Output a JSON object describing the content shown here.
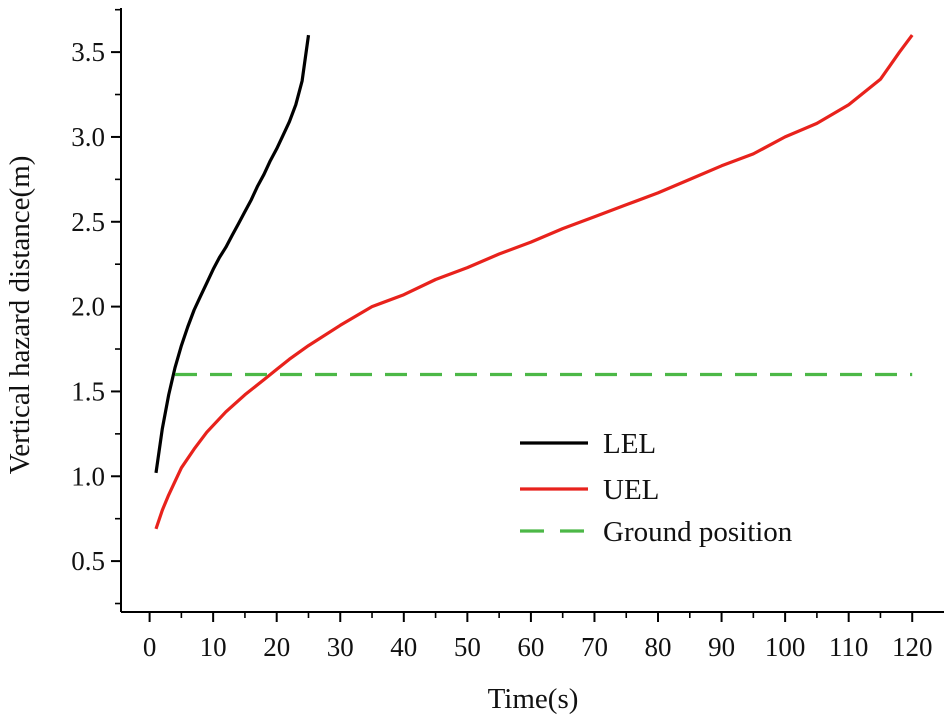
{
  "chart_data": {
    "type": "line",
    "title": "",
    "xlabel": "Time(s)",
    "ylabel": "Vertical hazard distance(m)",
    "xlim": [
      -4.5,
      125
    ],
    "ylim": [
      0.2,
      3.76
    ],
    "xticks": [
      0,
      10,
      20,
      30,
      40,
      50,
      60,
      70,
      80,
      90,
      100,
      110,
      120
    ],
    "yticks": [
      0.5,
      1.0,
      1.5,
      2.0,
      2.5,
      3.0,
      3.5
    ],
    "ytick_labels": [
      "0.5",
      "1.0",
      "1.5",
      "2.0",
      "2.5",
      "3.0",
      "3.5"
    ],
    "grid": false,
    "legend_position": "lower-right",
    "series": [
      {
        "name": "LEL",
        "color": "#000000",
        "style": "solid",
        "x": [
          1,
          2,
          3,
          4,
          5,
          6,
          7,
          8,
          9,
          10,
          11,
          12,
          13,
          14,
          15,
          16,
          17,
          18,
          19,
          20,
          21,
          22,
          23,
          24,
          25
        ],
        "y": [
          1.02,
          1.28,
          1.48,
          1.64,
          1.77,
          1.88,
          1.98,
          2.06,
          2.14,
          2.22,
          2.29,
          2.35,
          2.42,
          2.49,
          2.56,
          2.63,
          2.71,
          2.78,
          2.86,
          2.93,
          3.01,
          3.09,
          3.19,
          3.33,
          3.6
        ]
      },
      {
        "name": "UEL",
        "color": "#e8221c",
        "style": "solid",
        "x": [
          1,
          2,
          3,
          4,
          5,
          7,
          9,
          12,
          15,
          18,
          20,
          22,
          25,
          30,
          35,
          40,
          45,
          50,
          55,
          60,
          65,
          70,
          75,
          80,
          85,
          90,
          95,
          100,
          105,
          110,
          115,
          118,
          120
        ],
        "y": [
          0.69,
          0.8,
          0.89,
          0.97,
          1.05,
          1.16,
          1.26,
          1.38,
          1.48,
          1.57,
          1.63,
          1.69,
          1.77,
          1.89,
          2.0,
          2.07,
          2.16,
          2.23,
          2.31,
          2.38,
          2.46,
          2.53,
          2.6,
          2.67,
          2.75,
          2.83,
          2.9,
          3.0,
          3.08,
          3.19,
          3.34,
          3.5,
          3.6
        ]
      },
      {
        "name": "Ground position",
        "color": "#4cb847",
        "style": "dashed",
        "x": [
          4,
          120
        ],
        "y": [
          1.6,
          1.6
        ]
      }
    ]
  }
}
